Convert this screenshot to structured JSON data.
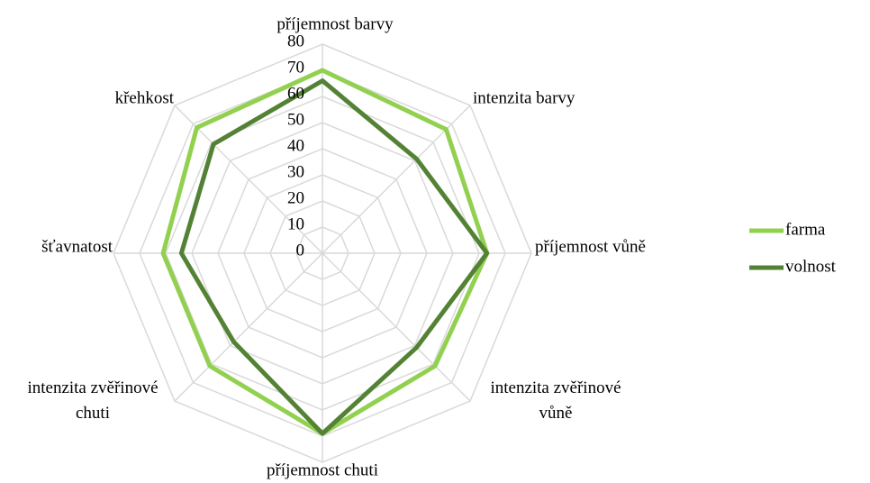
{
  "chart_data": {
    "type": "radar",
    "categories": [
      "příjemnost barvy",
      "intenzita barvy",
      "příjemnost vůně",
      "intenzita zvěřinové vůně",
      "příjemnost chuti",
      "intenzita zvěřinové chuti",
      "šťavnatost",
      "křehkost"
    ],
    "series": [
      {
        "name": "farma",
        "color": "#92d050",
        "values": [
          70,
          67,
          63,
          61,
          69,
          61,
          61,
          68
        ]
      },
      {
        "name": "volnost",
        "color": "#548235",
        "values": [
          66,
          51,
          63,
          51,
          69,
          48,
          54,
          59
        ]
      }
    ],
    "ylim": [
      0,
      80
    ],
    "yticks": [
      0,
      10,
      20,
      30,
      40,
      50,
      60,
      70,
      80
    ],
    "grid": true,
    "legend": "right"
  }
}
